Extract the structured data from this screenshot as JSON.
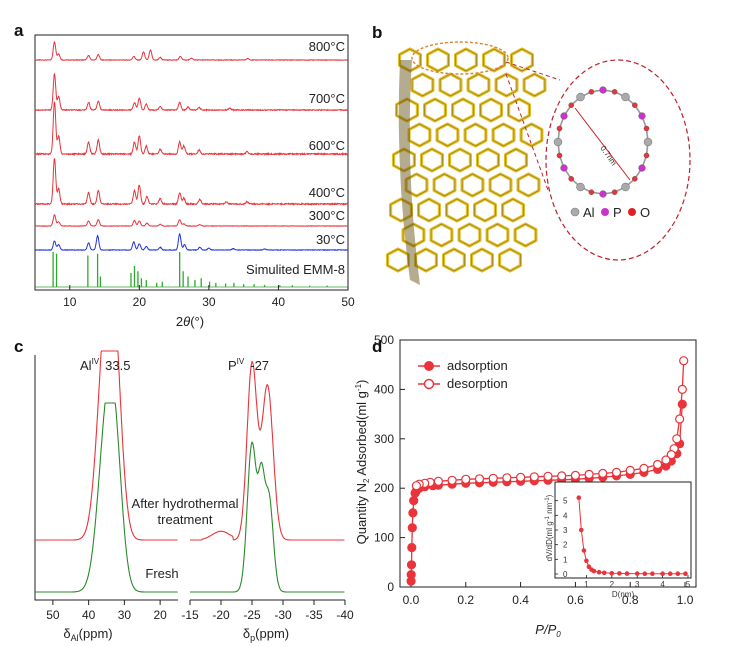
{
  "colors": {
    "red": "#e8343a",
    "blue": "#2233dd",
    "green": "#2fa82f",
    "darkgreen": "#2a8a2a",
    "gold": "#e3c02a",
    "purple": "#cc33cc",
    "grey": "#aaaaaa"
  },
  "panel_b": {
    "label": "b",
    "ring_label": "0.7nm",
    "legend": [
      {
        "symbol": "Al",
        "color": "#aaaaaa"
      },
      {
        "symbol": "P",
        "color": "#cc33cc"
      },
      {
        "symbol": "O",
        "color": "#dd2222"
      }
    ]
  },
  "chart_data": [
    {
      "panel": "a",
      "type": "line",
      "xlabel_parts": [
        "2",
        "θ",
        "(°)"
      ],
      "xlim": [
        5,
        50
      ],
      "xticks": [
        10,
        20,
        30,
        40,
        50
      ],
      "series": [
        {
          "name": "800°C",
          "color": "#e8343a",
          "peaks": [
            [
              7.8,
              1.0
            ],
            [
              8.4,
              0.35
            ],
            [
              12.7,
              0.25
            ],
            [
              14.1,
              0.3
            ],
            [
              19.2,
              0.2
            ],
            [
              20.6,
              0.45
            ],
            [
              21.6,
              0.55
            ],
            [
              23.0,
              0.15
            ],
            [
              25.9,
              0.2
            ],
            [
              27.5,
              0.1
            ],
            [
              35.6,
              0.08
            ]
          ]
        },
        {
          "name": "700°C",
          "color": "#e8343a",
          "peaks": [
            [
              7.8,
              1.2
            ],
            [
              8.4,
              0.45
            ],
            [
              12.7,
              0.25
            ],
            [
              14.1,
              0.3
            ],
            [
              19.3,
              0.25
            ],
            [
              20.0,
              0.4
            ],
            [
              21.0,
              0.2
            ],
            [
              23.0,
              0.12
            ],
            [
              25.8,
              0.25
            ],
            [
              27.0,
              0.1
            ],
            [
              28.6,
              0.08
            ],
            [
              33.0,
              0.06
            ]
          ]
        },
        {
          "name": "600°C",
          "color": "#e8343a",
          "peaks": [
            [
              7.8,
              1.3
            ],
            [
              8.4,
              0.45
            ],
            [
              12.7,
              0.3
            ],
            [
              14.1,
              0.35
            ],
            [
              19.3,
              0.3
            ],
            [
              20.0,
              0.45
            ],
            [
              21.0,
              0.2
            ],
            [
              23.0,
              0.12
            ],
            [
              25.8,
              0.3
            ],
            [
              26.4,
              0.2
            ],
            [
              28.6,
              0.1
            ],
            [
              35.5,
              0.06
            ]
          ]
        },
        {
          "name": "400°C",
          "color": "#e8343a",
          "peaks": [
            [
              7.8,
              1.2
            ],
            [
              8.4,
              0.4
            ],
            [
              12.7,
              0.3
            ],
            [
              14.1,
              0.35
            ],
            [
              19.3,
              0.35
            ],
            [
              20.0,
              0.5
            ],
            [
              21.1,
              0.2
            ],
            [
              23.0,
              0.15
            ],
            [
              25.8,
              0.3
            ],
            [
              26.4,
              0.15
            ],
            [
              28.7,
              0.12
            ],
            [
              32.5,
              0.06
            ],
            [
              35.5,
              0.06
            ]
          ]
        },
        {
          "name": "300°C",
          "color": "#e8343a",
          "peaks": [
            [
              7.8,
              0.8
            ],
            [
              8.4,
              0.3
            ],
            [
              12.7,
              0.35
            ],
            [
              14.1,
              0.45
            ],
            [
              19.3,
              0.4
            ],
            [
              20.0,
              0.35
            ],
            [
              21.1,
              0.2
            ],
            [
              23.0,
              0.12
            ],
            [
              25.8,
              0.45
            ],
            [
              26.4,
              0.15
            ],
            [
              28.7,
              0.1
            ]
          ]
        },
        {
          "name": "30°C",
          "color": "#2233dd",
          "peaks": [
            [
              7.8,
              0.5
            ],
            [
              8.4,
              0.3
            ],
            [
              12.7,
              0.4
            ],
            [
              14.0,
              0.8
            ],
            [
              19.2,
              0.45
            ],
            [
              20.0,
              0.35
            ],
            [
              21.0,
              0.2
            ],
            [
              23.0,
              0.15
            ],
            [
              25.8,
              0.9
            ],
            [
              26.5,
              0.3
            ],
            [
              28.7,
              0.15
            ],
            [
              30.0,
              0.1
            ],
            [
              33.5,
              0.08
            ],
            [
              38.0,
              0.06
            ]
          ]
        },
        {
          "name": "Simulited EMM-8",
          "color": "#2fa82f",
          "sticks": true,
          "peaks": [
            [
              7.6,
              1.0
            ],
            [
              8.1,
              0.95
            ],
            [
              12.6,
              0.9
            ],
            [
              14.0,
              0.95
            ],
            [
              14.4,
              0.3
            ],
            [
              18.8,
              0.4
            ],
            [
              19.3,
              0.6
            ],
            [
              19.8,
              0.45
            ],
            [
              20.3,
              0.25
            ],
            [
              21.0,
              0.2
            ],
            [
              22.5,
              0.12
            ],
            [
              23.3,
              0.15
            ],
            [
              25.8,
              1.0
            ],
            [
              26.3,
              0.45
            ],
            [
              27.0,
              0.3
            ],
            [
              28.0,
              0.2
            ],
            [
              28.9,
              0.25
            ],
            [
              30.1,
              0.15
            ],
            [
              31.0,
              0.12
            ],
            [
              32.4,
              0.1
            ],
            [
              33.6,
              0.12
            ],
            [
              35.0,
              0.08
            ],
            [
              36.5,
              0.08
            ],
            [
              38.0,
              0.06
            ],
            [
              40.2,
              0.05
            ],
            [
              42.0,
              0.05
            ],
            [
              44.5,
              0.04
            ],
            [
              47.0,
              0.04
            ]
          ]
        }
      ]
    },
    {
      "panel": "c",
      "type": "line",
      "subplots": [
        {
          "xlim": [
            55,
            15
          ],
          "xticks": [
            50,
            40,
            30,
            20
          ],
          "peak_label": {
            "main": "Al",
            "sup": "IV",
            "value": "33.5"
          },
          "xlabel": {
            "delta": "δ",
            "sub": "Al",
            "rest": "(ppm)"
          }
        },
        {
          "xlim": [
            -15,
            -40
          ],
          "xticks": [
            -15,
            -20,
            -25,
            -30,
            -35,
            -40
          ],
          "peak_label": {
            "main": "P",
            "sup": "IV",
            "value": "-27"
          },
          "xlabel": {
            "delta": "δ",
            "sub": "p",
            "rest": "(ppm)"
          }
        }
      ],
      "series": [
        {
          "name": "After hydrothermal treatment",
          "name_lines": [
            "After hydrothermal",
            "treatment"
          ],
          "color": "#e8343a",
          "al_peaks": [
            [
              35.5,
              1.0,
              2.2
            ],
            [
              32.8,
              0.95,
              2.0
            ]
          ],
          "p_peaks": [
            [
              -25.0,
              1.0,
              0.8
            ],
            [
              -27.5,
              0.88,
              0.9
            ]
          ],
          "offset": 0.35
        },
        {
          "name": "Fresh",
          "color": "#2a8a2a",
          "al_peaks": [
            [
              35.0,
              0.9,
              2.4
            ],
            [
              32.5,
              0.55,
              2.0
            ]
          ],
          "p_peaks": [
            [
              -25.0,
              0.85,
              0.75
            ],
            [
              -26.5,
              0.5,
              0.5
            ],
            [
              -27.7,
              0.55,
              0.7
            ]
          ],
          "offset": 0.0
        }
      ]
    },
    {
      "panel": "d",
      "type": "line",
      "xlabel_parts": [
        "P",
        "/",
        "P",
        "0"
      ],
      "ylabel_parts": [
        "Quantity N",
        "2",
        " Adsorbed(ml g",
        "-1",
        ")"
      ],
      "xlim": [
        -0.04,
        1.04
      ],
      "ylim": [
        0,
        500
      ],
      "xticks": [
        0.0,
        0.2,
        0.4,
        0.6,
        0.8,
        1.0
      ],
      "yticks": [
        0,
        100,
        200,
        300,
        400,
        500
      ],
      "legend_position": "top-left",
      "series": [
        {
          "name": "adsorption",
          "marker": "filled",
          "x": [
            0.0005,
            0.001,
            0.002,
            0.003,
            0.005,
            0.007,
            0.01,
            0.015,
            0.02,
            0.03,
            0.05,
            0.08,
            0.1,
            0.15,
            0.2,
            0.25,
            0.3,
            0.35,
            0.4,
            0.45,
            0.5,
            0.55,
            0.6,
            0.65,
            0.7,
            0.75,
            0.8,
            0.85,
            0.9,
            0.93,
            0.95,
            0.97,
            0.98,
            0.99
          ],
          "y": [
            12,
            25,
            45,
            80,
            120,
            150,
            175,
            190,
            195,
            200,
            203,
            205,
            206,
            208,
            210,
            211,
            212,
            213,
            214,
            215,
            216,
            217,
            218,
            220,
            222,
            225,
            228,
            232,
            238,
            245,
            255,
            270,
            290,
            370
          ]
        },
        {
          "name": "desorption",
          "marker": "open",
          "x": [
            0.995,
            0.99,
            0.98,
            0.97,
            0.96,
            0.95,
            0.93,
            0.9,
            0.85,
            0.8,
            0.75,
            0.7,
            0.65,
            0.6,
            0.55,
            0.5,
            0.45,
            0.4,
            0.35,
            0.3,
            0.25,
            0.2,
            0.15,
            0.1,
            0.07,
            0.05,
            0.03,
            0.02
          ],
          "y": [
            458,
            400,
            340,
            300,
            280,
            268,
            257,
            248,
            240,
            236,
            232,
            230,
            228,
            226,
            225,
            224,
            223,
            222,
            221,
            220,
            219,
            218,
            216,
            214,
            212,
            210,
            208,
            205
          ]
        }
      ],
      "inset": {
        "xlabel": "D(nm)",
        "ylabel_parts": [
          "dV/dD(ml g",
          "-1",
          " nm",
          "-1",
          ")"
        ],
        "xlim": [
          0,
          5
        ],
        "ylim": [
          0,
          6
        ],
        "xticks": [
          1,
          2,
          3,
          4,
          5
        ],
        "yticks": [
          0,
          1,
          2,
          3,
          4,
          5
        ],
        "x": [
          0.7,
          0.8,
          0.9,
          1.0,
          1.1,
          1.2,
          1.3,
          1.5,
          1.7,
          2.0,
          2.3,
          2.6,
          3.0,
          3.3,
          3.6,
          4.0,
          4.3,
          4.6,
          4.9
        ],
        "y": [
          5.2,
          3.0,
          1.6,
          0.9,
          0.5,
          0.3,
          0.2,
          0.12,
          0.08,
          0.05,
          0.04,
          0.03,
          0.03,
          0.02,
          0.02,
          0.02,
          0.02,
          0.02,
          0.02
        ]
      }
    }
  ]
}
